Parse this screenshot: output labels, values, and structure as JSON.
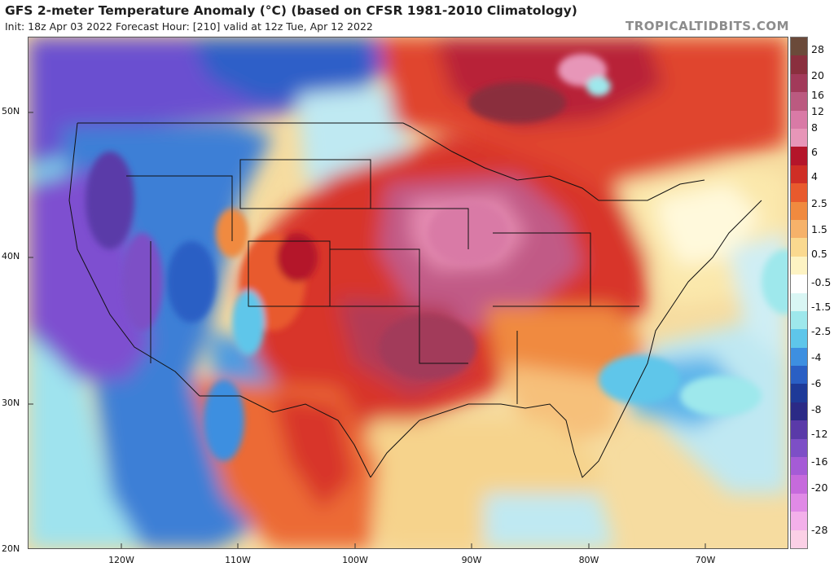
{
  "header": {
    "title": "GFS 2-meter Temperature Anomaly (°C) (based on CFSR 1981-2010 Climatology)",
    "subtitle": "Init: 18z Apr 03 2022   Forecast Hour: [210]   valid at 12z Tue, Apr 12 2022",
    "brand": "TROPICALTIDBITS.COM"
  },
  "axes": {
    "lat_labels": [
      "50N",
      "40N",
      "30N",
      "20N"
    ],
    "lon_labels": [
      "120W",
      "110W",
      "100W",
      "90W",
      "80W",
      "70W"
    ]
  },
  "legend": {
    "labels": [
      "28",
      "20",
      "16",
      "12",
      "8",
      "6",
      "4",
      "2.5",
      "1.5",
      "0.5",
      "-0.5",
      "-1.5",
      "-2.5",
      "-4",
      "-6",
      "-8",
      "-12",
      "-16",
      "-20",
      "-28"
    ],
    "colors": [
      "#6b4a3a",
      "#8a2f3e",
      "#a23a5a",
      "#bb5a80",
      "#d97aa6",
      "#e796b8",
      "#b4152a",
      "#cf2e25",
      "#e85a2d",
      "#f08a3f",
      "#f6b26a",
      "#fad98f",
      "#fdf3c3",
      "#ffffff",
      "#d9f6f4",
      "#9ee8ec",
      "#5ec6ea",
      "#3d8fe0",
      "#2a5fc4",
      "#1e3a98",
      "#2b2a86",
      "#5a3aa8",
      "#7d4fc6",
      "#a55bd6",
      "#c66adc",
      "#e08ae6",
      "#f3b0ea",
      "#fbd0e6"
    ]
  }
}
